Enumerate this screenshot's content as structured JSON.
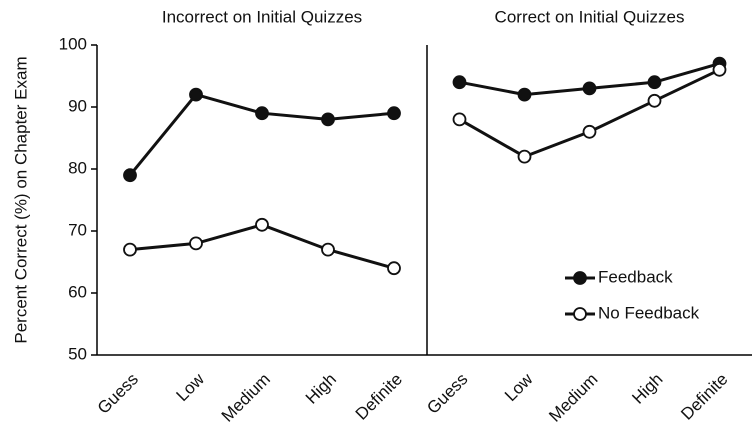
{
  "chart_data": [
    {
      "type": "line",
      "title": "Incorrect on Initial Quizzes",
      "ylabel": "Percent Correct (%) on Chapter Exam",
      "categories": [
        "Guess",
        "Low",
        "Medium",
        "High",
        "Definite"
      ],
      "series": [
        {
          "color": "#111111",
          "marker": "filled",
          "values": [
            79,
            92,
            89,
            88,
            89
          ]
        },
        {
          "color": "#111111",
          "marker": "open",
          "values": [
            67,
            68,
            71,
            67,
            64
          ]
        }
      ],
      "ylim": [
        50,
        100
      ],
      "yticks": [
        50,
        60,
        70,
        80,
        90,
        100
      ]
    },
    {
      "type": "line",
      "title": "Correct on Initial Quizzes",
      "categories": [
        "Guess",
        "Low",
        "Medium",
        "High",
        "Definite"
      ],
      "series": [
        {
          "name": "Feedback",
          "color": "#111111",
          "marker": "filled",
          "values": [
            94,
            92,
            93,
            94,
            97
          ]
        },
        {
          "name": "No Feedback",
          "color": "#111111",
          "marker": "open",
          "values": [
            88,
            82,
            86,
            91,
            96
          ]
        }
      ],
      "ylim": [
        50,
        100
      ],
      "legend": "lower right"
    }
  ]
}
